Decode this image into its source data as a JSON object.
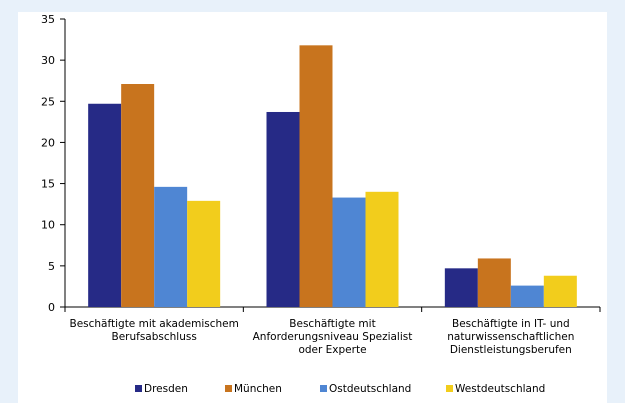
{
  "colors": {
    "background": "#e8f1fa",
    "panel": "#ffffff",
    "axis": "#000000"
  },
  "chart_data": {
    "type": "bar",
    "title": "",
    "xlabel": "",
    "ylabel": "",
    "ylim": [
      0,
      35
    ],
    "yticks": [
      0,
      5,
      10,
      15,
      20,
      25,
      30,
      35
    ],
    "grid": false,
    "legend_position": "bottom",
    "categories": [
      [
        "Beschäftigte mit akademischem",
        "Berufsabschluss"
      ],
      [
        "Beschäftigte mit",
        "Anforderungsniveau Spezialist",
        "oder Experte"
      ],
      [
        "Beschäftigte in IT- und",
        "naturwissenschaftlichen",
        "Dienstleistungsberufen"
      ]
    ],
    "series": [
      {
        "name": "Dresden",
        "color": "#262a86",
        "values": [
          24.7,
          23.7,
          4.7
        ]
      },
      {
        "name": "München",
        "color": "#c8741e",
        "values": [
          27.1,
          31.8,
          5.9
        ]
      },
      {
        "name": "Ostdeutschland",
        "color": "#4f86d3",
        "values": [
          14.6,
          13.3,
          2.6
        ]
      },
      {
        "name": "Westdeutschland",
        "color": "#f2cd1c",
        "values": [
          12.9,
          14.0,
          3.8
        ]
      }
    ]
  }
}
